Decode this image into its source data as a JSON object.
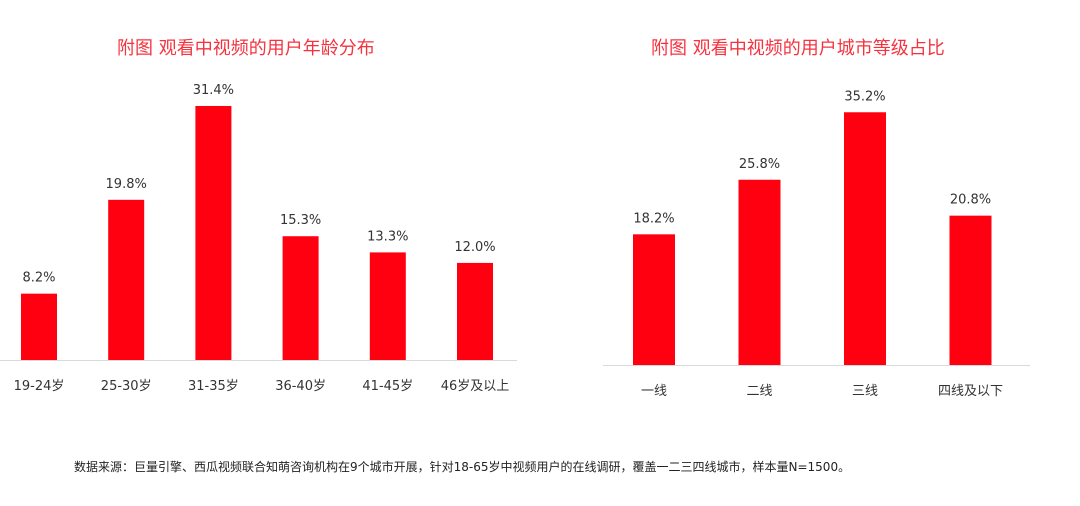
{
  "chart_data": [
    {
      "type": "bar",
      "title": "附图 观看中视频的用户年龄分布",
      "categories": [
        "19-24岁",
        "25-30岁",
        "31-35岁",
        "36-40岁",
        "41-45岁",
        "46岁及以上"
      ],
      "values": [
        8.2,
        19.8,
        31.4,
        15.3,
        13.3,
        12.0
      ],
      "value_labels": [
        "8.2%",
        "19.8%",
        "31.4%",
        "15.3%",
        "13.3%",
        "12.0%"
      ],
      "xlabel": "",
      "ylabel": "",
      "ylim": [
        0,
        32
      ],
      "grid": false,
      "color": "#ff0010"
    },
    {
      "type": "bar",
      "title": "附图 观看中视频的用户城市等级占比",
      "categories": [
        "一线",
        "二线",
        "三线",
        "四线及以下"
      ],
      "values": [
        18.2,
        25.8,
        35.2,
        20.8
      ],
      "value_labels": [
        "18.2%",
        "25.8%",
        "35.2%",
        "20.8%"
      ],
      "xlabel": "",
      "ylabel": "",
      "ylim": [
        0,
        36
      ],
      "grid": false,
      "color": "#ff0010"
    }
  ],
  "footnote": "数据来源：巨量引擎、西瓜视频联合知萌咨询机构在9个城市开展，针对18-65岁中视频用户的在线调研，覆盖一二三四线城市，样本量N=1500。"
}
